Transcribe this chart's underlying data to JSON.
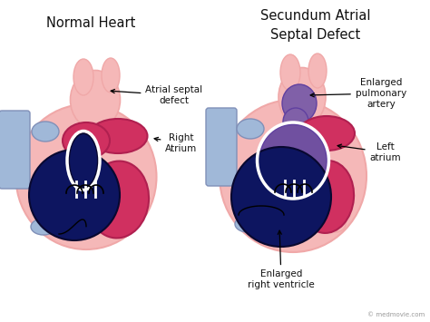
{
  "title_left": "Normal Heart",
  "title_right": "Secundum Atrial\nSeptal Defect",
  "bg_color": "#ffffff",
  "watermark": "© medmovie.com",
  "labels": {
    "atrial_septal_defect": "Atrial septal\ndefect",
    "right_atrium": "Right\nAtrium",
    "enlarged_pulmonary": "Enlarged\npulmonary\nartery",
    "left_atrium": "Left\natrium",
    "enlarged_right_ventricle": "Enlarged\nright ventricle"
  },
  "colors": {
    "pink_outer": "#f5b8b8",
    "pink_light": "#fad0d0",
    "pink_vessel": "#f0a8a8",
    "dark_navy": "#0d1560",
    "dark_blue": "#152070",
    "red_bright": "#d03060",
    "red_dark": "#b02050",
    "light_blue": "#a0b8d8",
    "blue_pale": "#c0d0e8",
    "purple": "#8060a8",
    "purple_dark": "#6040a0",
    "purple_mix": "#7050a0",
    "white": "#ffffff",
    "black": "#000000",
    "text_color": "#111111",
    "gray_text": "#999999"
  }
}
